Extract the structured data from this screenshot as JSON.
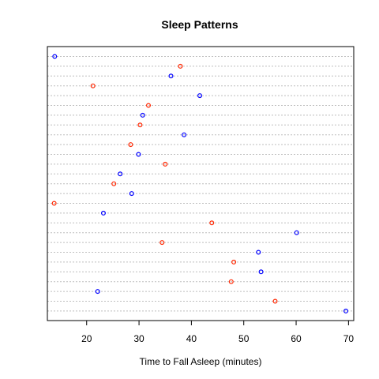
{
  "chart_data": {
    "type": "scatter",
    "title": "Sleep Patterns",
    "xlabel": "Time to Fall Asleep (minutes)",
    "ylabel": "",
    "xlim": [
      12.5,
      71
    ],
    "xticks": [
      20,
      30,
      40,
      50,
      60,
      70
    ],
    "grid": "dotted horizontal lines, one per row",
    "legend": "none",
    "colors": {
      "blue": "#0000ff",
      "red": "#ff2600",
      "grid": "#bebebe"
    },
    "points": [
      {
        "row": 1,
        "x": 13.9,
        "color": "blue"
      },
      {
        "row": 2,
        "x": 37.9,
        "color": "red"
      },
      {
        "row": 3,
        "x": 36.1,
        "color": "blue"
      },
      {
        "row": 4,
        "x": 21.2,
        "color": "red"
      },
      {
        "row": 5,
        "x": 41.6,
        "color": "blue"
      },
      {
        "row": 6,
        "x": 31.8,
        "color": "red"
      },
      {
        "row": 7,
        "x": 30.7,
        "color": "blue"
      },
      {
        "row": 8,
        "x": 30.2,
        "color": "red"
      },
      {
        "row": 9,
        "x": 38.6,
        "color": "blue"
      },
      {
        "row": 10,
        "x": 28.4,
        "color": "red"
      },
      {
        "row": 11,
        "x": 29.9,
        "color": "blue"
      },
      {
        "row": 12,
        "x": 35.0,
        "color": "red"
      },
      {
        "row": 13,
        "x": 26.4,
        "color": "blue"
      },
      {
        "row": 14,
        "x": 25.2,
        "color": "red"
      },
      {
        "row": 15,
        "x": 28.6,
        "color": "blue"
      },
      {
        "row": 16,
        "x": 13.8,
        "color": "red"
      },
      {
        "row": 17,
        "x": 23.2,
        "color": "blue"
      },
      {
        "row": 18,
        "x": 43.9,
        "color": "red"
      },
      {
        "row": 19,
        "x": 60.1,
        "color": "blue"
      },
      {
        "row": 20,
        "x": 34.4,
        "color": "red"
      },
      {
        "row": 21,
        "x": 52.8,
        "color": "blue"
      },
      {
        "row": 22,
        "x": 48.1,
        "color": "red"
      },
      {
        "row": 23,
        "x": 53.3,
        "color": "blue"
      },
      {
        "row": 24,
        "x": 47.6,
        "color": "red"
      },
      {
        "row": 25,
        "x": 22.1,
        "color": "blue"
      },
      {
        "row": 26,
        "x": 56.0,
        "color": "red"
      },
      {
        "row": 27,
        "x": 69.5,
        "color": "blue"
      }
    ]
  }
}
